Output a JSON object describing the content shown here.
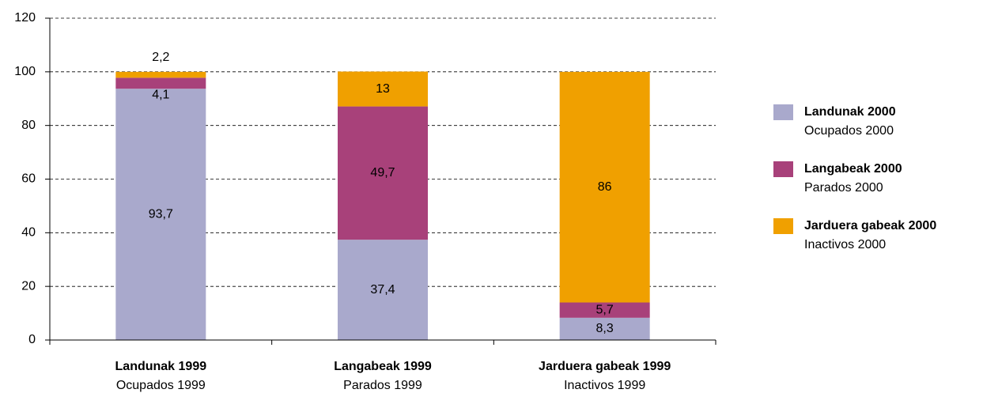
{
  "chart_data": {
    "type": "stacked_bar",
    "categories": [
      "Landunak 1999",
      "Langabeak 1999",
      "Jarduera gabeak 1999"
    ],
    "category_subtitles": [
      "Ocupados 1999",
      "Parados 1999",
      "Inactivos 1999"
    ],
    "series": [
      {
        "name": "Landunak 2000",
        "subname": "Ocupados 2000",
        "color": "#a9a9cc",
        "values": [
          93.7,
          37.4,
          8.3
        ],
        "value_labels": [
          "93,7",
          "37,4",
          "8,3"
        ]
      },
      {
        "name": "Langabeak 2000",
        "subname": "Parados 2000",
        "color": "#a8417a",
        "values": [
          4.1,
          49.7,
          5.7
        ],
        "value_labels": [
          "4,1",
          "49,7",
          "5,7"
        ]
      },
      {
        "name": "Jarduera gabeak 2000",
        "subname": "Inactivos 2000",
        "color": "#f0a000",
        "values": [
          2.2,
          13,
          86
        ],
        "value_labels": [
          "2,2",
          "13",
          "86"
        ]
      }
    ],
    "ylim": [
      0,
      120
    ],
    "yticks": [
      0,
      20,
      40,
      60,
      80,
      100,
      120
    ],
    "grid": true,
    "legend": "right"
  }
}
